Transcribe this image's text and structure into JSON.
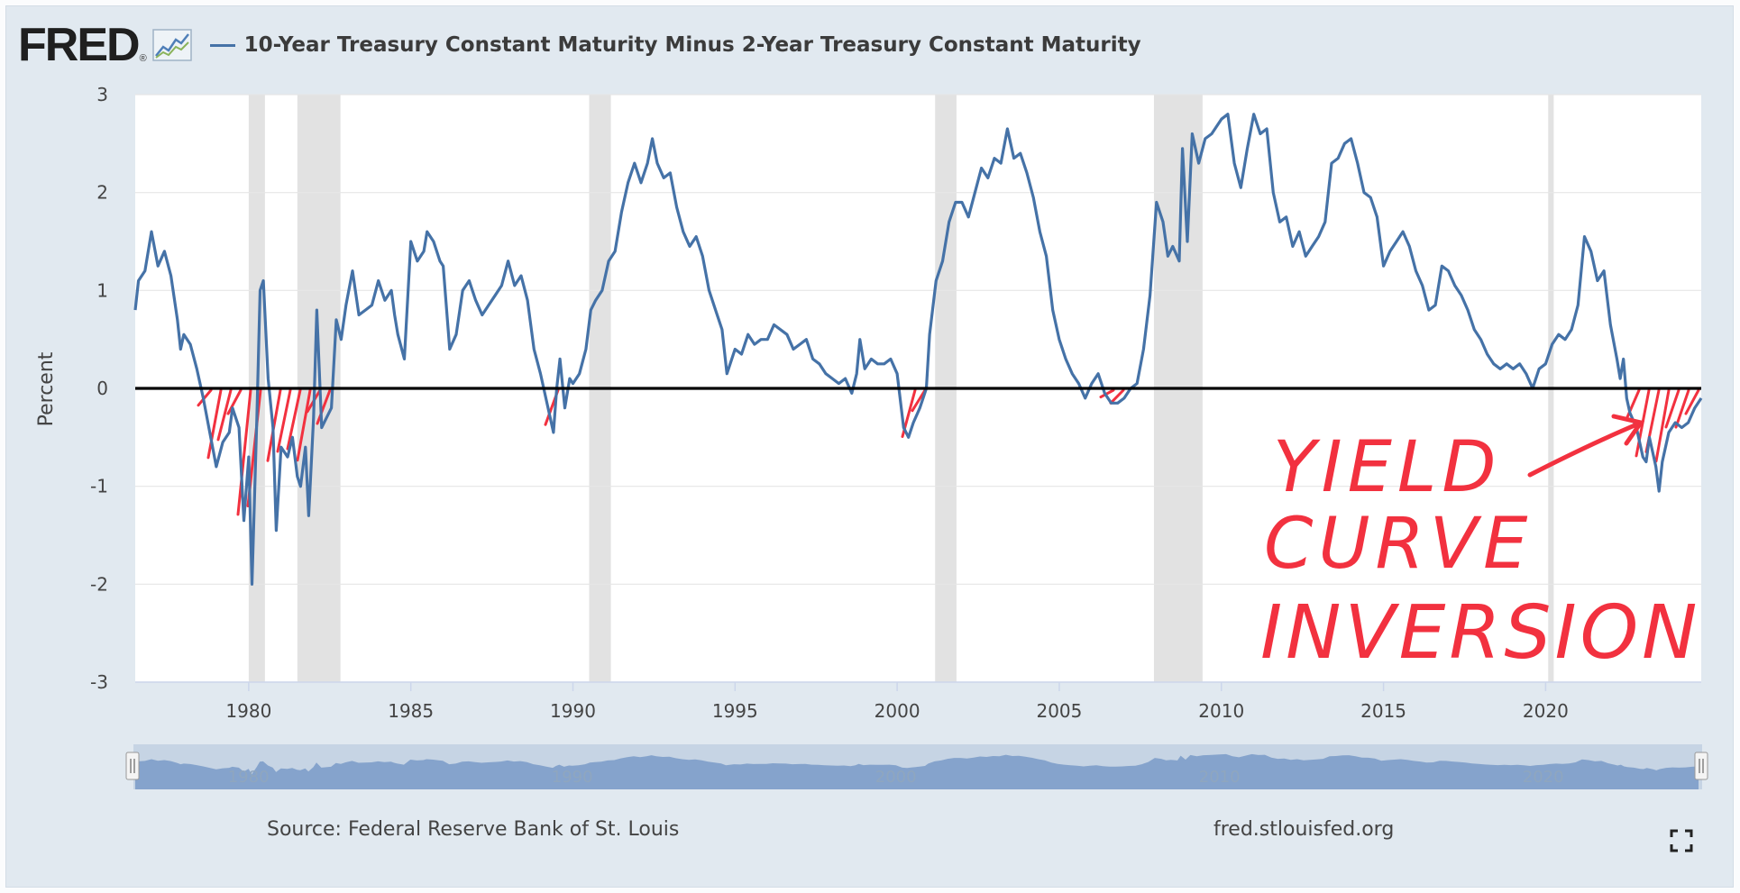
{
  "header": {
    "logo_text": "FRED",
    "logo_reg": "®",
    "series_title": "10-Year Treasury Constant Maturity Minus 2-Year Treasury Constant Maturity"
  },
  "footer": {
    "source": "Source: Federal Reserve Bank of St. Louis",
    "site": "fred.stlouisfed.org"
  },
  "annotation": {
    "text_lines": [
      "YIELD",
      "CURVE",
      "INVERSION"
    ],
    "color": "#f2313f"
  },
  "colors": {
    "series": "#4572a7",
    "recession": "#e2e2e2",
    "zero_line": "#000000",
    "navigator_fill": "#7d9dc9"
  },
  "icons": {
    "fullscreen": "fullscreen-icon",
    "navigator_handles": "drag-handle-icon"
  },
  "chart_data": {
    "type": "line",
    "title": "10-Year Treasury Constant Maturity Minus 2-Year Treasury Constant Maturity",
    "xlabel": "",
    "ylabel": "Percent",
    "xlim": [
      1976.5,
      2024.8
    ],
    "ylim": [
      -3,
      3
    ],
    "x_ticks": [
      1980,
      1985,
      1990,
      1995,
      2000,
      2005,
      2010,
      2015,
      2020
    ],
    "y_ticks": [
      3,
      2,
      1,
      0,
      -1,
      -2,
      -3
    ],
    "grid": true,
    "recessions": [
      [
        1980.0,
        1980.5
      ],
      [
        1981.5,
        1982.83
      ],
      [
        1990.5,
        1991.17
      ],
      [
        2001.17,
        2001.83
      ],
      [
        2007.92,
        2009.42
      ],
      [
        2020.08,
        2020.25
      ]
    ],
    "series": [
      {
        "name": "10-Year Treasury Constant Maturity Minus 2-Year Treasury Constant Maturity",
        "points": [
          [
            1976.5,
            0.8
          ],
          [
            1976.6,
            1.1
          ],
          [
            1976.8,
            1.2
          ],
          [
            1977.0,
            1.6
          ],
          [
            1977.2,
            1.25
          ],
          [
            1977.4,
            1.4
          ],
          [
            1977.6,
            1.15
          ],
          [
            1977.8,
            0.7
          ],
          [
            1977.9,
            0.4
          ],
          [
            1978.0,
            0.55
          ],
          [
            1978.2,
            0.45
          ],
          [
            1978.4,
            0.2
          ],
          [
            1978.6,
            -0.1
          ],
          [
            1978.8,
            -0.45
          ],
          [
            1979.0,
            -0.8
          ],
          [
            1979.2,
            -0.55
          ],
          [
            1979.4,
            -0.45
          ],
          [
            1979.5,
            -0.2
          ],
          [
            1979.7,
            -0.4
          ],
          [
            1979.85,
            -1.35
          ],
          [
            1980.0,
            -0.7
          ],
          [
            1980.1,
            -2.0
          ],
          [
            1980.25,
            -0.3
          ],
          [
            1980.35,
            1.0
          ],
          [
            1980.45,
            1.1
          ],
          [
            1980.6,
            0.1
          ],
          [
            1980.75,
            -0.4
          ],
          [
            1980.85,
            -1.45
          ],
          [
            1981.0,
            -0.6
          ],
          [
            1981.2,
            -0.7
          ],
          [
            1981.35,
            -0.5
          ],
          [
            1981.5,
            -0.9
          ],
          [
            1981.6,
            -1.0
          ],
          [
            1981.75,
            -0.6
          ],
          [
            1981.85,
            -1.3
          ],
          [
            1982.0,
            -0.3
          ],
          [
            1982.1,
            0.8
          ],
          [
            1982.25,
            -0.4
          ],
          [
            1982.4,
            -0.3
          ],
          [
            1982.55,
            -0.2
          ],
          [
            1982.7,
            0.7
          ],
          [
            1982.85,
            0.5
          ],
          [
            1983.0,
            0.85
          ],
          [
            1983.2,
            1.2
          ],
          [
            1983.4,
            0.75
          ],
          [
            1983.6,
            0.8
          ],
          [
            1983.8,
            0.85
          ],
          [
            1984.0,
            1.1
          ],
          [
            1984.2,
            0.9
          ],
          [
            1984.4,
            1.0
          ],
          [
            1984.5,
            0.75
          ],
          [
            1984.6,
            0.55
          ],
          [
            1984.8,
            0.3
          ],
          [
            1985.0,
            1.5
          ],
          [
            1985.2,
            1.3
          ],
          [
            1985.4,
            1.4
          ],
          [
            1985.5,
            1.6
          ],
          [
            1985.7,
            1.5
          ],
          [
            1985.9,
            1.3
          ],
          [
            1986.0,
            1.25
          ],
          [
            1986.2,
            0.4
          ],
          [
            1986.4,
            0.55
          ],
          [
            1986.6,
            1.0
          ],
          [
            1986.8,
            1.1
          ],
          [
            1987.0,
            0.9
          ],
          [
            1987.2,
            0.75
          ],
          [
            1987.4,
            0.85
          ],
          [
            1987.6,
            0.95
          ],
          [
            1987.8,
            1.05
          ],
          [
            1988.0,
            1.3
          ],
          [
            1988.2,
            1.05
          ],
          [
            1988.4,
            1.15
          ],
          [
            1988.6,
            0.9
          ],
          [
            1988.8,
            0.4
          ],
          [
            1989.0,
            0.15
          ],
          [
            1989.2,
            -0.15
          ],
          [
            1989.4,
            -0.45
          ],
          [
            1989.5,
            0.0
          ],
          [
            1989.6,
            0.3
          ],
          [
            1989.75,
            -0.2
          ],
          [
            1989.9,
            0.1
          ],
          [
            1990.0,
            0.05
          ],
          [
            1990.2,
            0.15
          ],
          [
            1990.4,
            0.4
          ],
          [
            1990.55,
            0.8
          ],
          [
            1990.7,
            0.9
          ],
          [
            1990.9,
            1.0
          ],
          [
            1991.1,
            1.3
          ],
          [
            1991.3,
            1.4
          ],
          [
            1991.5,
            1.8
          ],
          [
            1991.7,
            2.1
          ],
          [
            1991.9,
            2.3
          ],
          [
            1992.1,
            2.1
          ],
          [
            1992.3,
            2.3
          ],
          [
            1992.45,
            2.55
          ],
          [
            1992.6,
            2.3
          ],
          [
            1992.8,
            2.15
          ],
          [
            1993.0,
            2.2
          ],
          [
            1993.2,
            1.85
          ],
          [
            1993.4,
            1.6
          ],
          [
            1993.6,
            1.45
          ],
          [
            1993.8,
            1.55
          ],
          [
            1994.0,
            1.35
          ],
          [
            1994.2,
            1.0
          ],
          [
            1994.4,
            0.8
          ],
          [
            1994.6,
            0.6
          ],
          [
            1994.75,
            0.15
          ],
          [
            1995.0,
            0.4
          ],
          [
            1995.2,
            0.35
          ],
          [
            1995.4,
            0.55
          ],
          [
            1995.6,
            0.45
          ],
          [
            1995.8,
            0.5
          ],
          [
            1996.0,
            0.5
          ],
          [
            1996.2,
            0.65
          ],
          [
            1996.4,
            0.6
          ],
          [
            1996.6,
            0.55
          ],
          [
            1996.8,
            0.4
          ],
          [
            1997.0,
            0.45
          ],
          [
            1997.2,
            0.5
          ],
          [
            1997.4,
            0.3
          ],
          [
            1997.6,
            0.25
          ],
          [
            1997.8,
            0.15
          ],
          [
            1998.0,
            0.1
          ],
          [
            1998.2,
            0.05
          ],
          [
            1998.4,
            0.1
          ],
          [
            1998.6,
            -0.05
          ],
          [
            1998.75,
            0.15
          ],
          [
            1998.85,
            0.5
          ],
          [
            1999.0,
            0.2
          ],
          [
            1999.2,
            0.3
          ],
          [
            1999.4,
            0.25
          ],
          [
            1999.6,
            0.25
          ],
          [
            1999.8,
            0.3
          ],
          [
            2000.0,
            0.15
          ],
          [
            2000.2,
            -0.4
          ],
          [
            2000.35,
            -0.5
          ],
          [
            2000.5,
            -0.35
          ],
          [
            2000.7,
            -0.2
          ],
          [
            2000.9,
            0.0
          ],
          [
            2001.0,
            0.55
          ],
          [
            2001.2,
            1.1
          ],
          [
            2001.4,
            1.3
          ],
          [
            2001.6,
            1.7
          ],
          [
            2001.8,
            1.9
          ],
          [
            2002.0,
            1.9
          ],
          [
            2002.2,
            1.75
          ],
          [
            2002.4,
            2.0
          ],
          [
            2002.6,
            2.25
          ],
          [
            2002.8,
            2.15
          ],
          [
            2003.0,
            2.35
          ],
          [
            2003.2,
            2.3
          ],
          [
            2003.4,
            2.65
          ],
          [
            2003.6,
            2.35
          ],
          [
            2003.8,
            2.4
          ],
          [
            2004.0,
            2.2
          ],
          [
            2004.2,
            1.95
          ],
          [
            2004.4,
            1.6
          ],
          [
            2004.6,
            1.35
          ],
          [
            2004.8,
            0.8
          ],
          [
            2005.0,
            0.5
          ],
          [
            2005.2,
            0.3
          ],
          [
            2005.4,
            0.15
          ],
          [
            2005.6,
            0.05
          ],
          [
            2005.8,
            -0.1
          ],
          [
            2006.0,
            0.05
          ],
          [
            2006.2,
            0.15
          ],
          [
            2006.4,
            -0.05
          ],
          [
            2006.6,
            -0.15
          ],
          [
            2006.8,
            -0.15
          ],
          [
            2007.0,
            -0.1
          ],
          [
            2007.2,
            0.0
          ],
          [
            2007.4,
            0.05
          ],
          [
            2007.6,
            0.4
          ],
          [
            2007.8,
            0.95
          ],
          [
            2008.0,
            1.9
          ],
          [
            2008.2,
            1.7
          ],
          [
            2008.35,
            1.35
          ],
          [
            2008.5,
            1.45
          ],
          [
            2008.7,
            1.3
          ],
          [
            2008.8,
            2.45
          ],
          [
            2008.95,
            1.5
          ],
          [
            2009.1,
            2.6
          ],
          [
            2009.3,
            2.3
          ],
          [
            2009.5,
            2.55
          ],
          [
            2009.7,
            2.6
          ],
          [
            2010.0,
            2.75
          ],
          [
            2010.2,
            2.8
          ],
          [
            2010.4,
            2.3
          ],
          [
            2010.6,
            2.05
          ],
          [
            2010.8,
            2.45
          ],
          [
            2011.0,
            2.8
          ],
          [
            2011.2,
            2.6
          ],
          [
            2011.4,
            2.65
          ],
          [
            2011.6,
            2.0
          ],
          [
            2011.8,
            1.7
          ],
          [
            2012.0,
            1.75
          ],
          [
            2012.2,
            1.45
          ],
          [
            2012.4,
            1.6
          ],
          [
            2012.6,
            1.35
          ],
          [
            2012.8,
            1.45
          ],
          [
            2013.0,
            1.55
          ],
          [
            2013.2,
            1.7
          ],
          [
            2013.4,
            2.3
          ],
          [
            2013.6,
            2.35
          ],
          [
            2013.8,
            2.5
          ],
          [
            2014.0,
            2.55
          ],
          [
            2014.2,
            2.3
          ],
          [
            2014.4,
            2.0
          ],
          [
            2014.6,
            1.95
          ],
          [
            2014.8,
            1.75
          ],
          [
            2015.0,
            1.25
          ],
          [
            2015.2,
            1.4
          ],
          [
            2015.4,
            1.5
          ],
          [
            2015.6,
            1.6
          ],
          [
            2015.8,
            1.45
          ],
          [
            2016.0,
            1.2
          ],
          [
            2016.2,
            1.05
          ],
          [
            2016.4,
            0.8
          ],
          [
            2016.6,
            0.85
          ],
          [
            2016.8,
            1.25
          ],
          [
            2017.0,
            1.2
          ],
          [
            2017.2,
            1.05
          ],
          [
            2017.4,
            0.95
          ],
          [
            2017.6,
            0.8
          ],
          [
            2017.8,
            0.6
          ],
          [
            2018.0,
            0.5
          ],
          [
            2018.2,
            0.35
          ],
          [
            2018.4,
            0.25
          ],
          [
            2018.6,
            0.2
          ],
          [
            2018.8,
            0.25
          ],
          [
            2019.0,
            0.2
          ],
          [
            2019.2,
            0.25
          ],
          [
            2019.4,
            0.15
          ],
          [
            2019.6,
            0.0
          ],
          [
            2019.8,
            0.2
          ],
          [
            2020.0,
            0.25
          ],
          [
            2020.2,
            0.45
          ],
          [
            2020.4,
            0.55
          ],
          [
            2020.6,
            0.5
          ],
          [
            2020.8,
            0.6
          ],
          [
            2021.0,
            0.85
          ],
          [
            2021.2,
            1.55
          ],
          [
            2021.4,
            1.4
          ],
          [
            2021.6,
            1.1
          ],
          [
            2021.8,
            1.2
          ],
          [
            2022.0,
            0.65
          ],
          [
            2022.2,
            0.3
          ],
          [
            2022.3,
            0.1
          ],
          [
            2022.4,
            0.3
          ],
          [
            2022.5,
            -0.1
          ],
          [
            2022.6,
            -0.25
          ],
          [
            2022.8,
            -0.4
          ],
          [
            2023.0,
            -0.7
          ],
          [
            2023.1,
            -0.75
          ],
          [
            2023.2,
            -0.5
          ],
          [
            2023.4,
            -0.8
          ],
          [
            2023.5,
            -1.05
          ],
          [
            2023.6,
            -0.75
          ],
          [
            2023.8,
            -0.45
          ],
          [
            2024.0,
            -0.35
          ],
          [
            2024.2,
            -0.4
          ],
          [
            2024.4,
            -0.35
          ],
          [
            2024.6,
            -0.2
          ],
          [
            2024.8,
            -0.1
          ]
        ]
      }
    ]
  }
}
